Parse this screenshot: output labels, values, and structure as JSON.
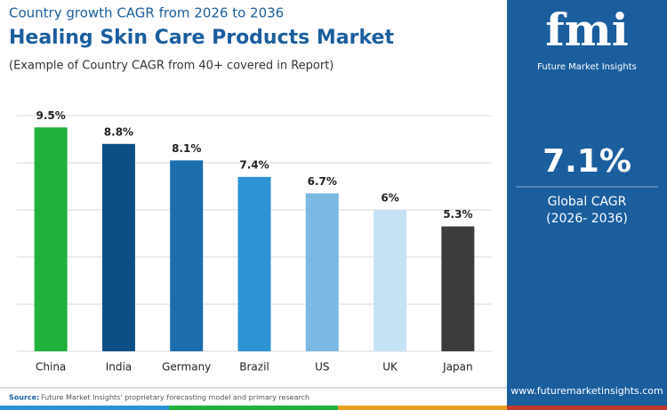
{
  "header": {
    "kicker": "Country growth CAGR from 2026 to 2036",
    "title": "Healing Skin Care Products Market",
    "subtitle": "(Example of Country CAGR from 40+ covered in Report)"
  },
  "chart_data": {
    "type": "bar",
    "categories": [
      "China",
      "India",
      "Germany",
      "Brazil",
      "US",
      "UK",
      "Japan"
    ],
    "values": [
      9.5,
      8.8,
      8.1,
      7.4,
      6.7,
      6,
      5.3
    ],
    "value_labels": [
      "9.5%",
      "8.8%",
      "8.1%",
      "7.4%",
      "6.7%",
      "6%",
      "5.3%"
    ],
    "colors": [
      "#1fb13b",
      "#0c4f86",
      "#1b6dad",
      "#2d93d5",
      "#7bb9e2",
      "#c6e3f5",
      "#3c3c3c"
    ],
    "ylim": [
      0,
      10
    ],
    "yticks": [
      0,
      2,
      4,
      6,
      8,
      10
    ],
    "grid": true
  },
  "panel": {
    "logo": "fmi",
    "brand": "Future Market Insights",
    "value": "7.1%",
    "label": "Global CAGR",
    "period": "(2026- 2036)",
    "url": "www.futuremarketinsights.com"
  },
  "footer": {
    "source_label": "Source:",
    "source": "Future Market Insights' proprietary forecasting model and primary research"
  }
}
